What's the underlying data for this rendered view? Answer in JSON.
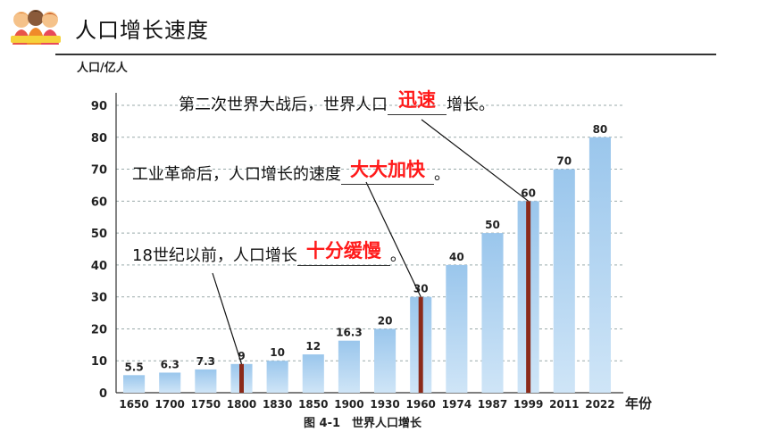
{
  "page_title": "人口增长速度",
  "annotations": [
    {
      "before": "第二次世界大战后，世界人口",
      "answer": "迅速",
      "after": "增长。"
    },
    {
      "before": "工业革命后，人口增长的速度",
      "answer": "大大加快",
      "after": "。"
    },
    {
      "before": "18世纪以前，人口增长",
      "answer": "十分缓慢",
      "after": "。"
    }
  ],
  "colors": {
    "bar": "#a9cfee",
    "marker": "#8b2a1a",
    "answer": "#ff1a1a"
  },
  "chart_data": {
    "type": "bar",
    "title": "图 4-1　世界人口增长",
    "ylabel": "人口/亿人",
    "xlabel": "年份",
    "categories": [
      "1650",
      "1700",
      "1750",
      "1800",
      "1830",
      "1850",
      "1900",
      "1930",
      "1960",
      "1974",
      "1987",
      "1999",
      "2011",
      "2022"
    ],
    "values": [
      5.5,
      6.3,
      7.3,
      9,
      10,
      12,
      16.3,
      20,
      30,
      40,
      50,
      60,
      70,
      80
    ],
    "value_labels": [
      "5.5",
      "6.3",
      "7.3",
      "9",
      "10",
      "12",
      "16.3",
      "20",
      "30",
      "40",
      "50",
      "60",
      "70",
      "80"
    ],
    "ylim": [
      0,
      90
    ],
    "yticks": [
      0,
      10,
      20,
      30,
      40,
      50,
      60,
      70,
      80,
      90
    ],
    "highlighted_categories": [
      "1800",
      "1960",
      "1999"
    ],
    "grid": true
  }
}
